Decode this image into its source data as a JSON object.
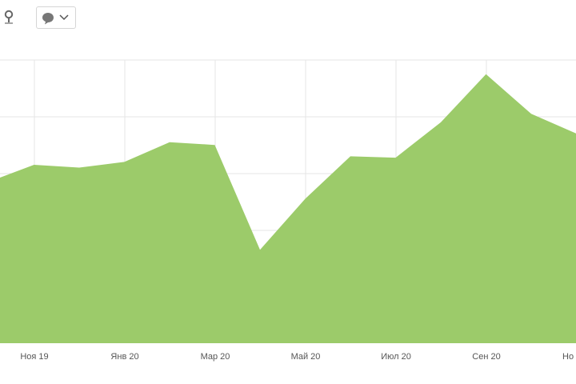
{
  "toolbar": {
    "pin_icon": "map-pin-icon",
    "comment_icon": "comment-bubble-icon",
    "dropdown_icon": "chevron-down-icon"
  },
  "chart_data": {
    "type": "area",
    "title": "",
    "xlabel": "",
    "ylabel": "",
    "x_tick_labels": [
      "Ноя 19",
      "Янв 20",
      "Мар 20",
      "Май 20",
      "Июл 20",
      "Сен 20",
      "Но"
    ],
    "series": [
      {
        "color": "#9ccb6a",
        "values": [
          0.57,
          0.63,
          0.62,
          0.64,
          0.71,
          0.7,
          0.33,
          0.51,
          0.66,
          0.655,
          0.78,
          0.95,
          0.81,
          0.74
        ]
      }
    ],
    "ylim": [
      0,
      1
    ],
    "grid": true,
    "legend": "none",
    "gridline_color": "#e6e6e6"
  }
}
